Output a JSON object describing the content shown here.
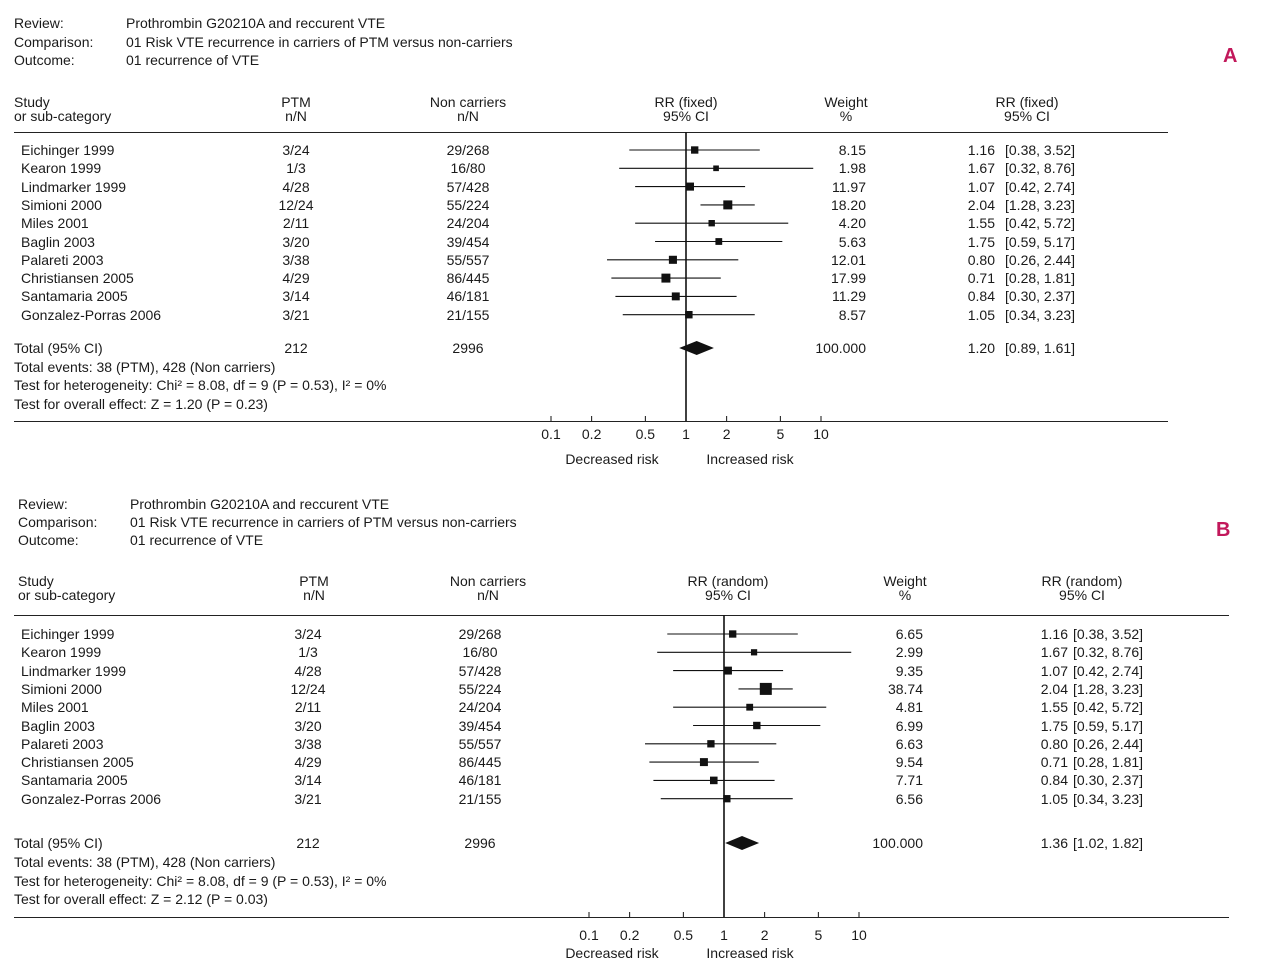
{
  "panels": [
    {
      "label": "A",
      "meta": {
        "review_label": "Review:",
        "review": "Prothrombin G20210A and reccurent VTE",
        "comparison_label": "Comparison:",
        "comparison": "01 Risk VTE recurrence in carriers of PTM versus non-carriers",
        "outcome_label": "Outcome:",
        "outcome": "01 recurrence of VTE"
      },
      "headers": {
        "study": [
          "Study",
          "or sub-category"
        ],
        "ptm": [
          "PTM",
          "n/N"
        ],
        "noncarriers": [
          "Non carriers",
          "n/N"
        ],
        "rr": [
          "RR (fixed)",
          "95% CI"
        ],
        "weight": [
          "Weight",
          "%"
        ],
        "rr_ci": [
          "RR (fixed)",
          "95% CI"
        ]
      },
      "studies": [
        {
          "name": "Eichinger 1999",
          "ptm": "3/24",
          "non": "29/268",
          "weight": "8.15",
          "rr": "1.16",
          "ci": "[0.38,  3.52]"
        },
        {
          "name": "Kearon 1999",
          "ptm": "1/3",
          "non": "16/80",
          "weight": "1.98",
          "rr": "1.67",
          "ci": "[0.32,  8.76]"
        },
        {
          "name": "Lindmarker 1999",
          "ptm": "4/28",
          "non": "57/428",
          "weight": "11.97",
          "rr": "1.07",
          "ci": "[0.42,  2.74]"
        },
        {
          "name": "Simioni 2000",
          "ptm": "12/24",
          "non": "55/224",
          "weight": "18.20",
          "rr": "2.04",
          "ci": "[1.28,  3.23]"
        },
        {
          "name": "Miles 2001",
          "ptm": "2/11",
          "non": "24/204",
          "weight": "4.20",
          "rr": "1.55",
          "ci": "[0.42,  5.72]"
        },
        {
          "name": "Baglin 2003",
          "ptm": "3/20",
          "non": "39/454",
          "weight": "5.63",
          "rr": "1.75",
          "ci": "[0.59,  5.17]"
        },
        {
          "name": "Palareti 2003",
          "ptm": "3/38",
          "non": "55/557",
          "weight": "12.01",
          "rr": "0.80",
          "ci": "[0.26,  2.44]"
        },
        {
          "name": "Christiansen 2005",
          "ptm": "4/29",
          "non": "86/445",
          "weight": "17.99",
          "rr": "0.71",
          "ci": "[0.28,  1.81]"
        },
        {
          "name": "Santamaria 2005",
          "ptm": "3/14",
          "non": "46/181",
          "weight": "11.29",
          "rr": "0.84",
          "ci": "[0.30,  2.37]"
        },
        {
          "name": "Gonzalez-Porras 2006",
          "ptm": "3/21",
          "non": "21/155",
          "weight": "8.57",
          "rr": "1.05",
          "ci": "[0.34,  3.23]"
        }
      ],
      "total": {
        "label": "Total (95% CI)",
        "ptm": "212",
        "non": "2996",
        "weight": "100.000",
        "rr": "1.20",
        "ci": "[0.89,  1.61]"
      },
      "footer": [
        "Total events: 38 (PTM), 428 (Non carriers)",
        "Test for heterogeneity: Chi² = 8.08, df = 9 (P = 0.53), I² = 0%",
        "Test for overall effect: Z = 1.20 (P = 0.23)"
      ],
      "axis_labels": {
        "left": "Decreased risk",
        "right": "Increased risk"
      }
    },
    {
      "label": "B",
      "meta": {
        "review_label": "Review:",
        "review": "Prothrombin G20210A and reccurent VTE",
        "comparison_label": "Comparison:",
        "comparison": "01 Risk VTE recurrence in carriers of PTM versus non-carriers",
        "outcome_label": "Outcome:",
        "outcome": "01 recurrence of VTE"
      },
      "headers": {
        "study": [
          "Study",
          "or sub-category"
        ],
        "ptm": [
          "PTM",
          "n/N"
        ],
        "noncarriers": [
          "Non carriers",
          "n/N"
        ],
        "rr": [
          "RR (random)",
          "95% CI"
        ],
        "weight": [
          "Weight",
          "%"
        ],
        "rr_ci": [
          "RR (random)",
          "95% CI"
        ]
      },
      "studies": [
        {
          "name": "Eichinger 1999",
          "ptm": "3/24",
          "non": "29/268",
          "weight": "6.65",
          "rr": "1.16",
          "ci": "[0.38, 3.52]"
        },
        {
          "name": "Kearon 1999",
          "ptm": "1/3",
          "non": "16/80",
          "weight": "2.99",
          "rr": "1.67",
          "ci": "[0.32, 8.76]"
        },
        {
          "name": "Lindmarker 1999",
          "ptm": "4/28",
          "non": "57/428",
          "weight": "9.35",
          "rr": "1.07",
          "ci": "[0.42, 2.74]"
        },
        {
          "name": "Simioni 2000",
          "ptm": "12/24",
          "non": "55/224",
          "weight": "38.74",
          "rr": "2.04",
          "ci": "[1.28, 3.23]"
        },
        {
          "name": "Miles 2001",
          "ptm": "2/11",
          "non": "24/204",
          "weight": "4.81",
          "rr": "1.55",
          "ci": "[0.42, 5.72]"
        },
        {
          "name": "Baglin 2003",
          "ptm": "3/20",
          "non": "39/454",
          "weight": "6.99",
          "rr": "1.75",
          "ci": "[0.59, 5.17]"
        },
        {
          "name": "Palareti 2003",
          "ptm": "3/38",
          "non": "55/557",
          "weight": "6.63",
          "rr": "0.80",
          "ci": "[0.26, 2.44]"
        },
        {
          "name": "Christiansen 2005",
          "ptm": "4/29",
          "non": "86/445",
          "weight": "9.54",
          "rr": "0.71",
          "ci": "[0.28, 1.81]"
        },
        {
          "name": "Santamaria 2005",
          "ptm": "3/14",
          "non": "46/181",
          "weight": "7.71",
          "rr": "0.84",
          "ci": "[0.30, 2.37]"
        },
        {
          "name": "Gonzalez-Porras 2006",
          "ptm": "3/21",
          "non": "21/155",
          "weight": "6.56",
          "rr": "1.05",
          "ci": "[0.34, 3.23]"
        }
      ],
      "total": {
        "label": "Total (95% CI)",
        "ptm": "212",
        "non": "2996",
        "weight": "100.000",
        "rr": "1.36",
        "ci": "[1.02, 1.82]"
      },
      "footer": [
        "Total events: 38 (PTM), 428 (Non carriers)",
        "Test for heterogeneity: Chi² = 8.08, df = 9 (P = 0.53), I² = 0%",
        "Test for overall effect: Z = 2.12 (P = 0.03)"
      ],
      "axis_labels": {
        "left": "Decreased risk",
        "right": "Increased risk"
      }
    }
  ],
  "chart_data": [
    {
      "type": "forest",
      "title": "A",
      "effect_measure": "RR (fixed)",
      "x_scale": "log",
      "x_ticks": [
        "0.1",
        "0.2",
        "0.5",
        "1",
        "2",
        "5",
        "10"
      ],
      "xlim": [
        0.1,
        10
      ],
      "xlabel_left": "Decreased risk",
      "xlabel_right": "Increased risk",
      "studies": [
        {
          "name": "Eichinger 1999",
          "rr": 1.16,
          "lo": 0.38,
          "hi": 3.52,
          "weight": 8.15
        },
        {
          "name": "Kearon 1999",
          "rr": 1.67,
          "lo": 0.32,
          "hi": 8.76,
          "weight": 1.98
        },
        {
          "name": "Lindmarker 1999",
          "rr": 1.07,
          "lo": 0.42,
          "hi": 2.74,
          "weight": 11.97
        },
        {
          "name": "Simioni 2000",
          "rr": 2.04,
          "lo": 1.28,
          "hi": 3.23,
          "weight": 18.2
        },
        {
          "name": "Miles 2001",
          "rr": 1.55,
          "lo": 0.42,
          "hi": 5.72,
          "weight": 4.2
        },
        {
          "name": "Baglin 2003",
          "rr": 1.75,
          "lo": 0.59,
          "hi": 5.17,
          "weight": 5.63
        },
        {
          "name": "Palareti 2003",
          "rr": 0.8,
          "lo": 0.26,
          "hi": 2.44,
          "weight": 12.01
        },
        {
          "name": "Christiansen 2005",
          "rr": 0.71,
          "lo": 0.28,
          "hi": 1.81,
          "weight": 17.99
        },
        {
          "name": "Santamaria 2005",
          "rr": 0.84,
          "lo": 0.3,
          "hi": 2.37,
          "weight": 11.29
        },
        {
          "name": "Gonzalez-Porras 2006",
          "rr": 1.05,
          "lo": 0.34,
          "hi": 3.23,
          "weight": 8.57
        }
      ],
      "total": {
        "rr": 1.2,
        "lo": 0.89,
        "hi": 1.61,
        "weight": 100.0
      }
    },
    {
      "type": "forest",
      "title": "B",
      "effect_measure": "RR (random)",
      "x_scale": "log",
      "x_ticks": [
        "0.1",
        "0.2",
        "0.5",
        "1",
        "2",
        "5",
        "10"
      ],
      "xlim": [
        0.1,
        10
      ],
      "xlabel_left": "Decreased risk",
      "xlabel_right": "Increased risk",
      "studies": [
        {
          "name": "Eichinger 1999",
          "rr": 1.16,
          "lo": 0.38,
          "hi": 3.52,
          "weight": 6.65
        },
        {
          "name": "Kearon 1999",
          "rr": 1.67,
          "lo": 0.32,
          "hi": 8.76,
          "weight": 2.99
        },
        {
          "name": "Lindmarker 1999",
          "rr": 1.07,
          "lo": 0.42,
          "hi": 2.74,
          "weight": 9.35
        },
        {
          "name": "Simioni 2000",
          "rr": 2.04,
          "lo": 1.28,
          "hi": 3.23,
          "weight": 38.74
        },
        {
          "name": "Miles 2001",
          "rr": 1.55,
          "lo": 0.42,
          "hi": 5.72,
          "weight": 4.81
        },
        {
          "name": "Baglin 2003",
          "rr": 1.75,
          "lo": 0.59,
          "hi": 5.17,
          "weight": 6.99
        },
        {
          "name": "Palareti 2003",
          "rr": 0.8,
          "lo": 0.26,
          "hi": 2.44,
          "weight": 6.63
        },
        {
          "name": "Christiansen 2005",
          "rr": 0.71,
          "lo": 0.28,
          "hi": 1.81,
          "weight": 9.54
        },
        {
          "name": "Santamaria 2005",
          "rr": 0.84,
          "lo": 0.3,
          "hi": 2.37,
          "weight": 7.71
        },
        {
          "name": "Gonzalez-Porras 2006",
          "rr": 1.05,
          "lo": 0.34,
          "hi": 3.23,
          "weight": 6.56
        }
      ],
      "total": {
        "rr": 1.36,
        "lo": 1.02,
        "hi": 1.82,
        "weight": 100.0
      }
    }
  ]
}
